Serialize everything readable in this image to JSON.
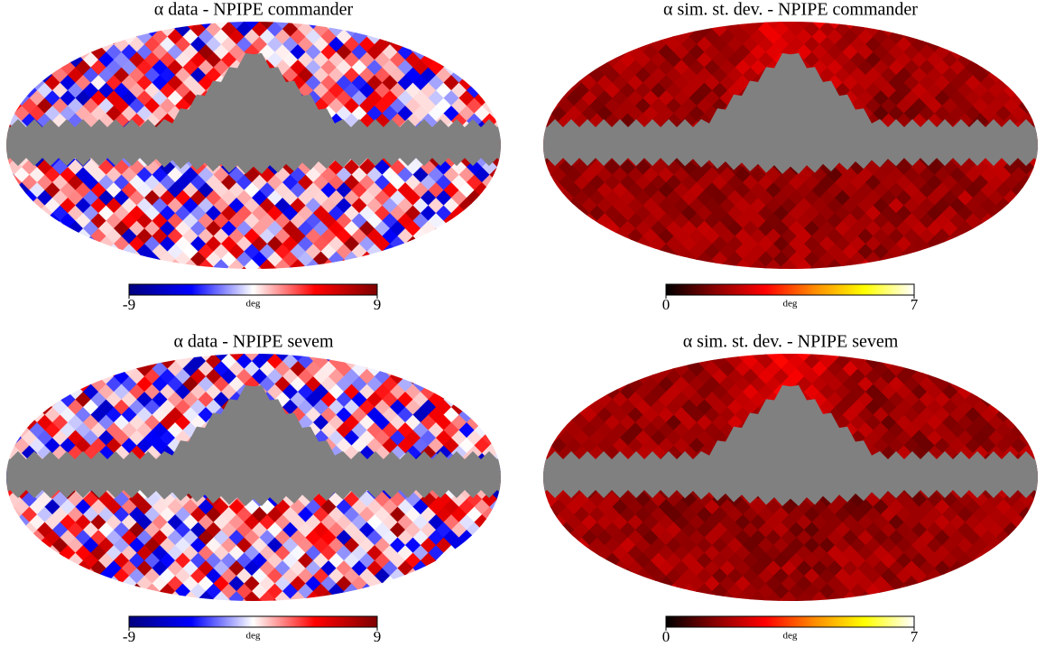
{
  "chart_data": [
    {
      "type": "map",
      "title": "α data - NPIPE commander",
      "colorbar_label": "deg",
      "clim": [
        -9,
        9
      ],
      "cticks": [
        -9,
        9
      ],
      "colormap": [
        "#00007f",
        "#0000ff",
        "#ffffff",
        "#ff0000",
        "#7f0000"
      ],
      "mask_color": "#808080"
    },
    {
      "type": "map",
      "title": "α sim. st. dev. - NPIPE commander",
      "colorbar_label": "deg",
      "clim": [
        0,
        7
      ],
      "cticks": [
        0,
        7
      ],
      "colormap": [
        "#000000",
        "#8b0000",
        "#ff0000",
        "#ff8c00",
        "#ffff00",
        "#ffffff"
      ],
      "mask_color": "#808080"
    },
    {
      "type": "map",
      "title": "α data - NPIPE sevem",
      "colorbar_label": "deg",
      "clim": [
        -9,
        9
      ],
      "cticks": [
        -9,
        9
      ],
      "colormap": [
        "#00007f",
        "#0000ff",
        "#ffffff",
        "#ff0000",
        "#7f0000"
      ],
      "mask_color": "#808080"
    },
    {
      "type": "map",
      "title": "α sim. st. dev. - NPIPE sevem",
      "colorbar_label": "deg",
      "clim": [
        0,
        7
      ],
      "cticks": [
        0,
        7
      ],
      "colormap": [
        "#000000",
        "#8b0000",
        "#ff0000",
        "#ff8c00",
        "#ffff00",
        "#ffffff"
      ],
      "mask_color": "#808080"
    }
  ]
}
